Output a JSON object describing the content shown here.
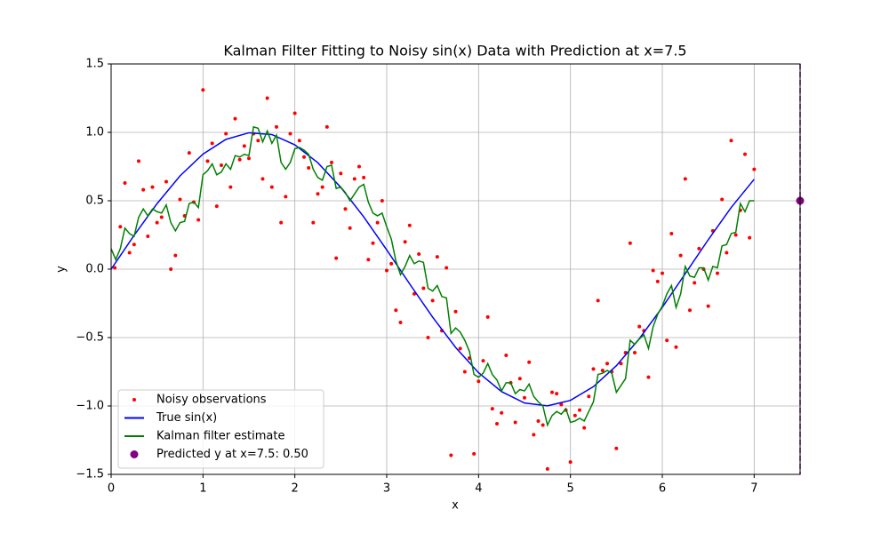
{
  "chart_data": {
    "type": "line",
    "title": "Kalman Filter Fitting to Noisy sin(x) Data with Prediction at x=7.5",
    "x_label": "x",
    "y_label": "y",
    "xlim": [
      0,
      7.5
    ],
    "ylim": [
      -1.5,
      1.5
    ],
    "xticks": [
      0,
      1,
      2,
      3,
      4,
      5,
      6,
      7
    ],
    "yticks": [
      {
        "value": -1.5,
        "label": "−1.5"
      },
      {
        "value": -1,
        "label": "−1.0"
      },
      {
        "value": -0.5,
        "label": "−0.5"
      },
      {
        "value": 0,
        "label": "0.0"
      },
      {
        "value": 0.5,
        "label": "0.5"
      },
      {
        "value": 1,
        "label": "1.0"
      },
      {
        "value": 1.5,
        "label": "1.5"
      }
    ],
    "grid": true,
    "legend": "lower left",
    "vline": {
      "x": 7.5,
      "color": "purple"
    },
    "series": [
      {
        "name": "Noisy observations",
        "kind": "scatter",
        "color": "red",
        "x": [
          0.04,
          0.1,
          0.15,
          0.2,
          0.25,
          0.3,
          0.35,
          0.4,
          0.45,
          0.5,
          0.55,
          0.6,
          0.65,
          0.7,
          0.75,
          0.8,
          0.85,
          0.9,
          0.95,
          1.0,
          1.05,
          1.1,
          1.15,
          1.2,
          1.25,
          1.3,
          1.35,
          1.4,
          1.45,
          1.5,
          1.55,
          1.6,
          1.65,
          1.7,
          1.75,
          1.8,
          1.85,
          1.9,
          1.95,
          2.0,
          2.05,
          2.1,
          2.15,
          2.2,
          2.25,
          2.3,
          2.35,
          2.4,
          2.45,
          2.5,
          2.55,
          2.6,
          2.65,
          2.7,
          2.75,
          2.8,
          2.85,
          2.9,
          2.95,
          3.0,
          3.05,
          3.1,
          3.15,
          3.2,
          3.25,
          3.3,
          3.35,
          3.4,
          3.45,
          3.5,
          3.55,
          3.6,
          3.65,
          3.7,
          3.75,
          3.8,
          3.85,
          3.9,
          3.95,
          4.0,
          4.05,
          4.1,
          4.15,
          4.2,
          4.25,
          4.3,
          4.35,
          4.4,
          4.45,
          4.5,
          4.55,
          4.6,
          4.65,
          4.7,
          4.75,
          4.8,
          4.85,
          4.9,
          4.95,
          5.0,
          5.05,
          5.1,
          5.15,
          5.2,
          5.25,
          5.3,
          5.35,
          5.4,
          5.45,
          5.5,
          5.55,
          5.6,
          5.65,
          5.7,
          5.75,
          5.8,
          5.85,
          5.9,
          5.95,
          6.0,
          6.05,
          6.1,
          6.15,
          6.2,
          6.25,
          6.3,
          6.35,
          6.4,
          6.45,
          6.5,
          6.55,
          6.6,
          6.65,
          6.7,
          6.75,
          6.8,
          6.85,
          6.9,
          6.95,
          7.0
        ],
        "values": [
          0.01,
          0.31,
          0.63,
          0.12,
          0.18,
          0.79,
          0.58,
          0.24,
          0.6,
          0.34,
          0.38,
          0.64,
          0.0,
          0.1,
          0.51,
          0.39,
          0.85,
          0.49,
          0.36,
          1.31,
          0.79,
          0.92,
          0.46,
          0.76,
          0.99,
          0.6,
          1.1,
          0.8,
          0.9,
          0.81,
          0.99,
          0.94,
          0.66,
          1.25,
          0.6,
          1.04,
          0.34,
          0.53,
          0.99,
          1.14,
          0.94,
          0.82,
          0.74,
          0.34,
          0.55,
          0.6,
          1.04,
          0.78,
          0.08,
          0.7,
          0.44,
          0.3,
          0.66,
          0.75,
          0.67,
          0.07,
          0.19,
          0.34,
          0.5,
          -0.01,
          0.04,
          -0.3,
          -0.39,
          0.2,
          0.32,
          -0.18,
          0.11,
          -0.14,
          -0.5,
          -0.23,
          0.09,
          -0.45,
          0.01,
          -1.36,
          -0.31,
          -0.58,
          -0.75,
          -0.65,
          -1.35,
          -0.82,
          -0.67,
          -0.35,
          -1.02,
          -1.13,
          -1.05,
          -0.63,
          -0.83,
          -1.12,
          -0.8,
          -0.94,
          -0.68,
          -1.21,
          -1.11,
          -1.14,
          -1.46,
          -0.9,
          -0.91,
          -0.99,
          -1.03,
          -1.41,
          -1.07,
          -1.03,
          -1.16,
          -0.93,
          -0.73,
          -0.23,
          -0.74,
          -0.69,
          -0.75,
          -1.31,
          -0.69,
          -0.61,
          0.19,
          -0.61,
          -0.42,
          -0.45,
          -0.79,
          -0.01,
          -0.09,
          -0.03,
          -0.52,
          0.26,
          -0.57,
          0.1,
          0.66,
          -0.3,
          -0.1,
          0.15,
          0.0,
          -0.27,
          0.28,
          -0.03,
          0.51,
          0.12,
          0.94,
          0.25,
          0.43,
          0.84,
          0.23,
          0.73
        ]
      },
      {
        "name": "True sin(x)",
        "kind": "line",
        "color": "blue",
        "x": [
          0,
          0.25,
          0.5,
          0.75,
          1,
          1.25,
          1.5,
          1.75,
          2,
          2.25,
          2.5,
          2.75,
          3,
          3.25,
          3.5,
          3.75,
          4,
          4.25,
          4.5,
          4.75,
          5,
          5.25,
          5.5,
          5.75,
          6,
          6.25,
          6.5,
          6.75,
          7
        ],
        "values": [
          0,
          0.247,
          0.479,
          0.682,
          0.841,
          0.949,
          0.997,
          0.984,
          0.909,
          0.778,
          0.598,
          0.382,
          0.141,
          -0.108,
          -0.351,
          -0.572,
          -0.757,
          -0.895,
          -0.978,
          -0.999,
          -0.959,
          -0.859,
          -0.706,
          -0.508,
          -0.279,
          -0.033,
          0.215,
          0.451,
          0.657
        ]
      },
      {
        "name": "Kalman filter estimate",
        "kind": "line",
        "color": "green",
        "x": [
          0,
          0.05,
          0.1,
          0.15,
          0.2,
          0.25,
          0.3,
          0.35,
          0.4,
          0.45,
          0.5,
          0.55,
          0.6,
          0.65,
          0.7,
          0.75,
          0.8,
          0.85,
          0.9,
          0.95,
          1.0,
          1.05,
          1.1,
          1.15,
          1.2,
          1.25,
          1.3,
          1.35,
          1.4,
          1.45,
          1.5,
          1.55,
          1.6,
          1.65,
          1.7,
          1.75,
          1.8,
          1.85,
          1.9,
          1.95,
          2.0,
          2.05,
          2.1,
          2.15,
          2.2,
          2.25,
          2.3,
          2.35,
          2.4,
          2.45,
          2.5,
          2.55,
          2.6,
          2.65,
          2.7,
          2.75,
          2.8,
          2.85,
          2.9,
          2.95,
          3.0,
          3.05,
          3.1,
          3.15,
          3.2,
          3.25,
          3.3,
          3.35,
          3.4,
          3.45,
          3.5,
          3.55,
          3.6,
          3.65,
          3.7,
          3.75,
          3.8,
          3.85,
          3.9,
          3.95,
          4.0,
          4.05,
          4.1,
          4.15,
          4.2,
          4.25,
          4.3,
          4.35,
          4.4,
          4.45,
          4.5,
          4.55,
          4.6,
          4.65,
          4.7,
          4.75,
          4.8,
          4.85,
          4.9,
          4.95,
          5.0,
          5.05,
          5.1,
          5.15,
          5.2,
          5.25,
          5.3,
          5.35,
          5.4,
          5.45,
          5.5,
          5.55,
          5.6,
          5.65,
          5.7,
          5.75,
          5.8,
          5.85,
          5.9,
          5.95,
          6.0,
          6.05,
          6.1,
          6.15,
          6.2,
          6.25,
          6.3,
          6.35,
          6.4,
          6.45,
          6.5,
          6.55,
          6.6,
          6.65,
          6.7,
          6.75,
          6.8,
          6.85,
          6.9,
          6.95,
          7.0
        ],
        "values": [
          0.15,
          0.07,
          0.15,
          0.3,
          0.26,
          0.24,
          0.38,
          0.44,
          0.39,
          0.44,
          0.42,
          0.41,
          0.47,
          0.34,
          0.28,
          0.34,
          0.35,
          0.48,
          0.49,
          0.45,
          0.69,
          0.72,
          0.77,
          0.69,
          0.71,
          0.77,
          0.73,
          0.83,
          0.82,
          0.84,
          0.83,
          1.04,
          1.03,
          0.93,
          1.01,
          0.92,
          0.98,
          0.78,
          0.73,
          0.78,
          0.88,
          0.89,
          0.87,
          0.84,
          0.73,
          0.67,
          0.65,
          0.75,
          0.76,
          0.59,
          0.6,
          0.56,
          0.5,
          0.55,
          0.6,
          0.62,
          0.49,
          0.41,
          0.39,
          0.41,
          0.31,
          0.22,
          0.06,
          -0.04,
          0.02,
          0.1,
          0.04,
          0.06,
          0.05,
          -0.14,
          -0.16,
          -0.12,
          -0.2,
          -0.21,
          -0.47,
          -0.43,
          -0.46,
          -0.52,
          -0.6,
          -0.77,
          -0.79,
          -0.76,
          -0.69,
          -0.77,
          -0.81,
          -0.89,
          -0.83,
          -0.83,
          -0.91,
          -0.88,
          -0.89,
          -0.84,
          -0.93,
          -0.97,
          -1.0,
          -1.14,
          -1.07,
          -1.04,
          -1.06,
          -1.02,
          -1.12,
          -1.11,
          -1.09,
          -1.11,
          -1.04,
          -0.97,
          -0.77,
          -0.76,
          -0.74,
          -0.76,
          -0.9,
          -0.85,
          -0.8,
          -0.52,
          -0.55,
          -0.51,
          -0.48,
          -0.58,
          -0.42,
          -0.33,
          -0.27,
          -0.18,
          -0.12,
          -0.28,
          -0.18,
          0.02,
          -0.05,
          -0.06,
          0.01,
          0.01,
          -0.08,
          0.02,
          0.01,
          0.17,
          0.18,
          0.26,
          0.27,
          0.48,
          0.42,
          0.5,
          0.5
        ]
      },
      {
        "name": "Predicted y at x=7.5: 0.50",
        "kind": "point",
        "color": "purple",
        "x": [
          7.5
        ],
        "values": [
          0.5
        ]
      }
    ]
  }
}
